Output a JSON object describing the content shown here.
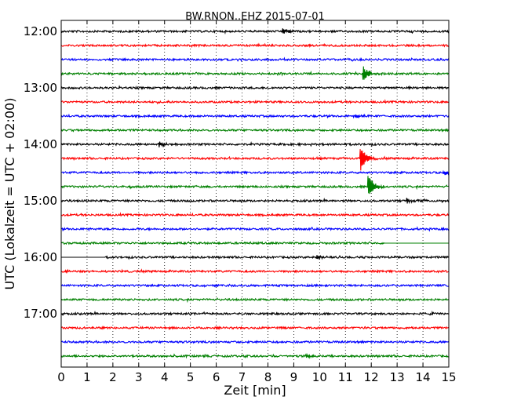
{
  "chart_data": {
    "type": "line",
    "title": "BW.RNON..EHZ 2015-07-01",
    "xlabel": "Zeit  [min]",
    "ylabel": "UTC (Lokalzeit = UTC + 02:00)",
    "xlim": [
      0,
      15
    ],
    "x_ticks": [
      "0",
      "1",
      "2",
      "3",
      "4",
      "5",
      "6",
      "7",
      "8",
      "9",
      "10",
      "11",
      "12",
      "13",
      "14",
      "15"
    ],
    "grid": "vertical dotted",
    "row_minutes": 15,
    "start_time": "12:00",
    "y_ticks": [
      "12:00",
      "13:00",
      "14:00",
      "15:00",
      "16:00",
      "17:00"
    ],
    "trace_colors": [
      "#000000",
      "#ff0000",
      "#0000ff",
      "#008000"
    ],
    "traces": [
      {
        "time": "12:00",
        "events": [
          {
            "minute": 8.6,
            "amp": 0.35
          }
        ]
      },
      {
        "time": "12:15",
        "events": []
      },
      {
        "time": "12:30",
        "events": []
      },
      {
        "time": "12:45",
        "events": [
          {
            "minute": 11.7,
            "amp": 0.9
          }
        ]
      },
      {
        "time": "13:00",
        "events": []
      },
      {
        "time": "13:15",
        "events": []
      },
      {
        "time": "13:30",
        "events": [
          {
            "minute": 11.4,
            "amp": 0.3
          }
        ]
      },
      {
        "time": "13:45",
        "events": []
      },
      {
        "time": "14:00",
        "events": [
          {
            "minute": 3.8,
            "amp": 0.3
          }
        ]
      },
      {
        "time": "14:15",
        "events": [
          {
            "minute": 11.6,
            "amp": 1.6
          }
        ]
      },
      {
        "time": "14:30",
        "events": [
          {
            "minute": 14.8,
            "amp": 0.3
          }
        ]
      },
      {
        "time": "14:45",
        "events": [
          {
            "minute": 11.9,
            "amp": 1.4
          }
        ]
      },
      {
        "time": "15:00",
        "events": [
          {
            "minute": 13.4,
            "amp": 0.3
          }
        ]
      },
      {
        "time": "15:15",
        "events": []
      },
      {
        "time": "15:30",
        "events": []
      },
      {
        "time": "15:45",
        "events": [],
        "flat_after_minute": 12.5
      },
      {
        "time": "16:00",
        "events": [
          {
            "minute": 9.9,
            "amp": 0.3
          }
        ],
        "flat_before_minute": 1.7
      },
      {
        "time": "16:15",
        "events": []
      },
      {
        "time": "16:30",
        "events": []
      },
      {
        "time": "16:45",
        "events": []
      },
      {
        "time": "17:00",
        "events": []
      },
      {
        "time": "17:15",
        "events": []
      },
      {
        "time": "17:30",
        "events": []
      },
      {
        "time": "17:45",
        "events": [
          {
            "minute": 9.5,
            "amp": 0.25
          }
        ]
      }
    ]
  }
}
